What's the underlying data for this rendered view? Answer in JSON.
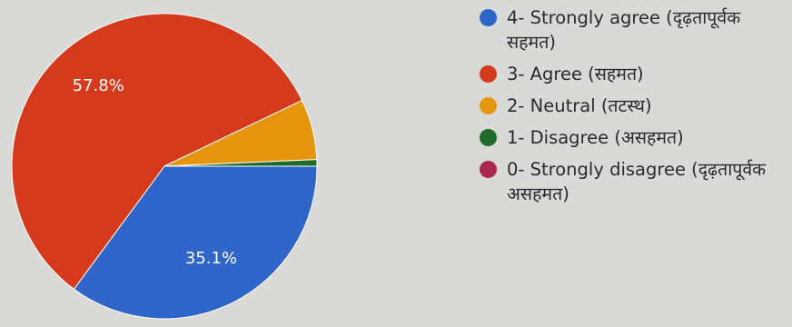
{
  "chart_data": {
    "type": "pie",
    "series": [
      {
        "name": "4- Strongly agree (दृढ़तापूर्वक सहमत)",
        "value": 35.1,
        "color": "#2f64c8"
      },
      {
        "name": "3- Agree (सहमत)",
        "value": 57.8,
        "color": "#d63a1c"
      },
      {
        "name": "2- Neutral (तटस्थ)",
        "value": 6.4,
        "color": "#e6950f"
      },
      {
        "name": "1- Disagree (असहमत)",
        "value": 0.7,
        "color": "#1f6b2a"
      },
      {
        "name": "0- Strongly disagree (दृढ़तापूर्वक असहमत)",
        "value": 0,
        "color": "#a8284f"
      }
    ],
    "data_labels": [
      {
        "series": "3- Agree (सहमत)",
        "text": "57.8%"
      },
      {
        "series": "4- Strongly agree (दृढ़तापूर्वक सहमत)",
        "text": "35.1%"
      }
    ],
    "legend_position": "right"
  }
}
